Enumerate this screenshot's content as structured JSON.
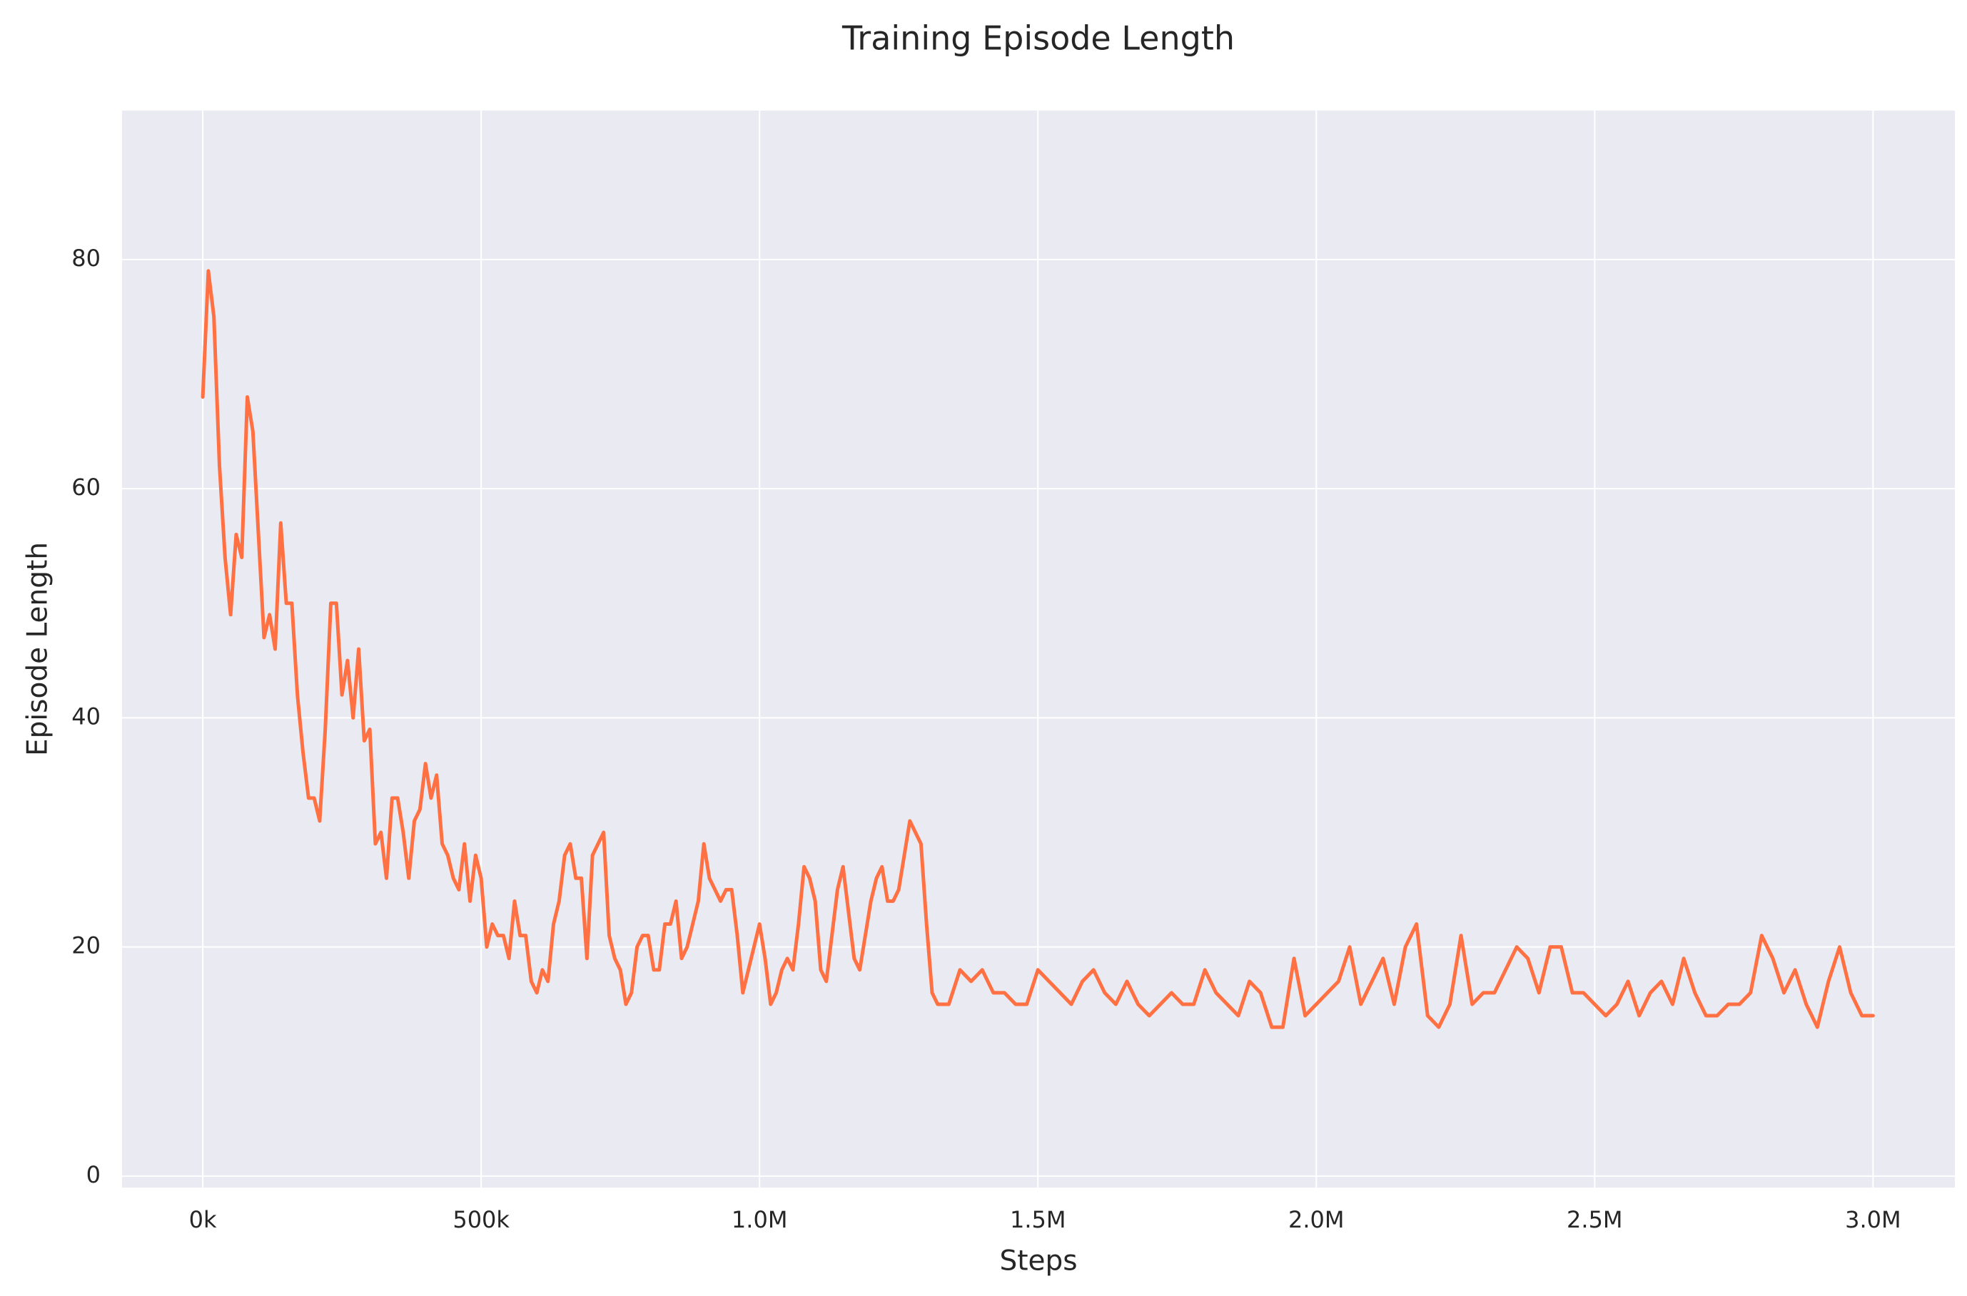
{
  "chart_data": {
    "type": "line",
    "title": "Training Episode Length",
    "x_label": "Steps",
    "y_label": "Episode Length",
    "x": [
      0,
      10000,
      20000,
      30000,
      40000,
      50000,
      60000,
      70000,
      80000,
      90000,
      100000,
      110000,
      120000,
      130000,
      140000,
      150000,
      160000,
      170000,
      180000,
      190000,
      200000,
      210000,
      220000,
      230000,
      240000,
      250000,
      260000,
      270000,
      280000,
      290000,
      300000,
      310000,
      320000,
      330000,
      340000,
      350000,
      360000,
      370000,
      380000,
      390000,
      400000,
      410000,
      420000,
      430000,
      440000,
      450000,
      460000,
      470000,
      480000,
      490000,
      500000,
      510000,
      520000,
      530000,
      540000,
      550000,
      560000,
      570000,
      580000,
      590000,
      600000,
      610000,
      620000,
      630000,
      640000,
      650000,
      660000,
      670000,
      680000,
      690000,
      700000,
      710000,
      720000,
      730000,
      740000,
      750000,
      760000,
      770000,
      780000,
      790000,
      800000,
      810000,
      820000,
      830000,
      840000,
      850000,
      860000,
      870000,
      880000,
      890000,
      900000,
      910000,
      920000,
      930000,
      940000,
      950000,
      960000,
      970000,
      980000,
      990000,
      1000000,
      1010000,
      1020000,
      1030000,
      1040000,
      1050000,
      1060000,
      1070000,
      1080000,
      1090000,
      1100000,
      1110000,
      1120000,
      1130000,
      1140000,
      1150000,
      1160000,
      1170000,
      1180000,
      1190000,
      1200000,
      1210000,
      1220000,
      1230000,
      1240000,
      1250000,
      1260000,
      1270000,
      1280000,
      1290000,
      1300000,
      1310000,
      1320000,
      1340000,
      1360000,
      1380000,
      1400000,
      1420000,
      1440000,
      1460000,
      1480000,
      1500000,
      1520000,
      1540000,
      1560000,
      1580000,
      1600000,
      1620000,
      1640000,
      1660000,
      1680000,
      1700000,
      1720000,
      1740000,
      1760000,
      1780000,
      1800000,
      1820000,
      1840000,
      1860000,
      1880000,
      1900000,
      1920000,
      1940000,
      1960000,
      1980000,
      2000000,
      2020000,
      2040000,
      2060000,
      2080000,
      2100000,
      2120000,
      2140000,
      2160000,
      2180000,
      2200000,
      2220000,
      2240000,
      2260000,
      2280000,
      2300000,
      2320000,
      2340000,
      2360000,
      2380000,
      2400000,
      2420000,
      2440000,
      2460000,
      2480000,
      2500000,
      2520000,
      2540000,
      2560000,
      2580000,
      2600000,
      2620000,
      2640000,
      2660000,
      2680000,
      2700000,
      2720000,
      2740000,
      2760000,
      2780000,
      2800000,
      2820000,
      2840000,
      2860000,
      2880000,
      2900000,
      2920000,
      2940000,
      2960000,
      2980000,
      3000000
    ],
    "series": [
      {
        "name": "Episode Length",
        "color": "#ff7043",
        "values": [
          68,
          79,
          75,
          62,
          54,
          49,
          56,
          54,
          68,
          65,
          56,
          47,
          49,
          46,
          57,
          50,
          50,
          42,
          37,
          33,
          33,
          31,
          39,
          50,
          50,
          42,
          45,
          40,
          46,
          38,
          39,
          29,
          30,
          26,
          33,
          33,
          30,
          26,
          31,
          32,
          36,
          33,
          35,
          29,
          28,
          26,
          25,
          29,
          24,
          28,
          26,
          20,
          22,
          21,
          21,
          19,
          24,
          21,
          21,
          17,
          16,
          18,
          17,
          22,
          24,
          28,
          29,
          26,
          26,
          19,
          28,
          29,
          30,
          21,
          19,
          18,
          15,
          16,
          20,
          21,
          21,
          18,
          18,
          22,
          22,
          24,
          19,
          20,
          22,
          24,
          29,
          26,
          25,
          24,
          25,
          25,
          21,
          16,
          18,
          20,
          22,
          19,
          15,
          16,
          18,
          19,
          18,
          22,
          27,
          26,
          24,
          18,
          17,
          21,
          25,
          27,
          23,
          19,
          18,
          21,
          24,
          26,
          27,
          24,
          24,
          25,
          28,
          31,
          30,
          29,
          22,
          16,
          15,
          15,
          18,
          17,
          18,
          16,
          16,
          15,
          15,
          18,
          17,
          16,
          15,
          17,
          18,
          16,
          15,
          17,
          15,
          14,
          15,
          16,
          15,
          15,
          18,
          16,
          15,
          14,
          17,
          16,
          13,
          13,
          19,
          14,
          15,
          16,
          17,
          20,
          15,
          17,
          19,
          15,
          20,
          22,
          14,
          13,
          15,
          21,
          15,
          16,
          16,
          18,
          20,
          19,
          16,
          20,
          20,
          16,
          16,
          15,
          14,
          15,
          17,
          14,
          16,
          17,
          15,
          19,
          16,
          14,
          14,
          15,
          15,
          16,
          21,
          19,
          16,
          18,
          15,
          13,
          17,
          20,
          16,
          14,
          14
        ]
      }
    ],
    "xlim": [
      -145000,
      3147000
    ],
    "ylim": [
      -1,
      93
    ],
    "xticks": [
      {
        "value": 0,
        "label": "0k"
      },
      {
        "value": 500000,
        "label": "500k"
      },
      {
        "value": 1000000,
        "label": "1.0M"
      },
      {
        "value": 1500000,
        "label": "1.5M"
      },
      {
        "value": 2000000,
        "label": "2.0M"
      },
      {
        "value": 2500000,
        "label": "2.5M"
      },
      {
        "value": 3000000,
        "label": "3.0M"
      }
    ],
    "yticks": [
      0,
      20,
      40,
      60,
      80
    ],
    "grid": true
  }
}
